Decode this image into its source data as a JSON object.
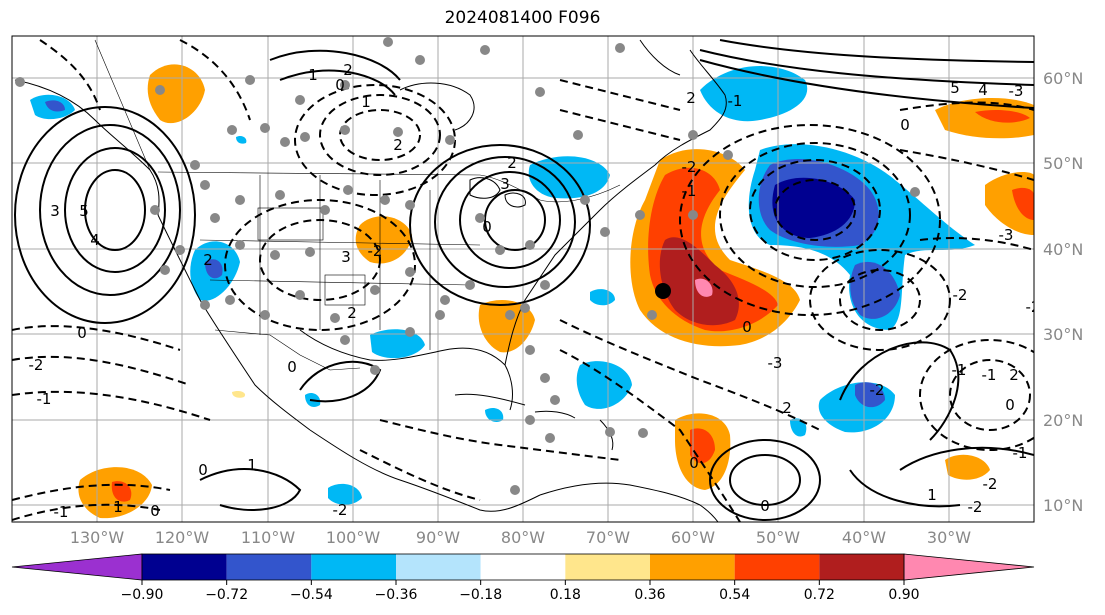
{
  "title": "2024081400 F096",
  "lat_labels": [
    "60°N",
    "50°N",
    "40°N",
    "30°N",
    "20°N",
    "10°N"
  ],
  "lon_labels": [
    "130°W",
    "120°W",
    "110°W",
    "100°W",
    "90°W",
    "80°W",
    "70°W",
    "60°W",
    "50°W",
    "40°W",
    "30°W"
  ],
  "colorbar": {
    "ticks": [
      "−0.90",
      "−0.72",
      "−0.54",
      "−0.36",
      "−0.18",
      "0.18",
      "0.36",
      "0.54",
      "0.72",
      "0.90"
    ],
    "colors": [
      "#9b30d0",
      "#000090",
      "#3355cc",
      "#00b8f5",
      "#b4e4fc",
      "#ffffff",
      "#ffe68c",
      "#ffa000",
      "#ff4000",
      "#b01e1e",
      "#ff88b0"
    ]
  },
  "contour_labels": [
    {
      "text": "1"
    },
    {
      "text": "2"
    },
    {
      "text": "0"
    },
    {
      "text": "1"
    },
    {
      "text": "2"
    },
    {
      "text": "3"
    },
    {
      "text": "5"
    },
    {
      "text": "4"
    },
    {
      "text": "3"
    },
    {
      "text": "2"
    },
    {
      "text": "0"
    },
    {
      "text": "3"
    },
    {
      "text": "2"
    },
    {
      "text": "-2"
    },
    {
      "text": "2"
    },
    {
      "text": "0"
    },
    {
      "text": "-2"
    },
    {
      "text": "-1"
    },
    {
      "text": "0"
    },
    {
      "text": "1"
    },
    {
      "text": "0"
    },
    {
      "text": "1"
    },
    {
      "text": "0"
    },
    {
      "text": "-1"
    },
    {
      "text": "-2"
    },
    {
      "text": "-2"
    },
    {
      "text": "-1"
    },
    {
      "text": "0"
    },
    {
      "text": "0"
    },
    {
      "text": "-3"
    },
    {
      "text": "2"
    },
    {
      "text": "-2"
    },
    {
      "text": "-1"
    },
    {
      "text": "2"
    },
    {
      "text": "0"
    },
    {
      "text": "-2"
    },
    {
      "text": "-1"
    },
    {
      "text": "0"
    },
    {
      "text": "5"
    },
    {
      "text": "4"
    },
    {
      "text": "-3"
    },
    {
      "text": "-2"
    },
    {
      "text": "-3"
    },
    {
      "text": "1"
    },
    {
      "text": "-2"
    },
    {
      "text": "-1"
    },
    {
      "text": "0"
    },
    {
      "text": "-2"
    },
    {
      "text": "2"
    },
    {
      "text": "-1"
    }
  ]
}
